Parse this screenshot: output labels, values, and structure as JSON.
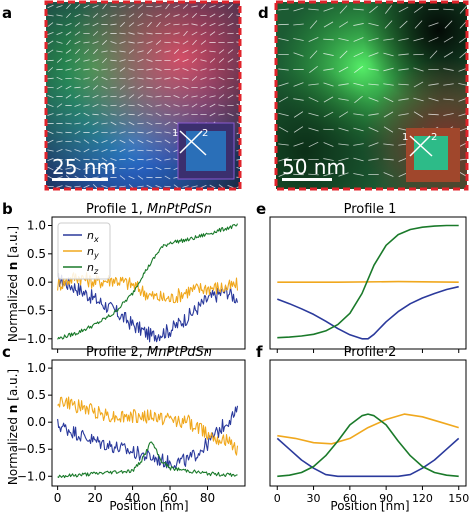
{
  "panels": {
    "a": {
      "label": "a",
      "scale_bar": "25 nm",
      "inset_markers": [
        "1",
        "2"
      ]
    },
    "d": {
      "label": "d",
      "scale_bar": "50 nm",
      "inset_markers": [
        "1",
        "2"
      ]
    }
  },
  "colors": {
    "nx": "#2b3a9c",
    "ny": "#f0a81e",
    "nz": "#1a7a2a",
    "image_border": "#e0232b"
  },
  "chart_data": [
    {
      "panel": "b",
      "type": "line",
      "title": "Profile 1, MnPtPdSn",
      "title_prefix": "Profile 1, ",
      "title_material": "MnPtPdSn",
      "xlabel": "",
      "ylabel_prefix": "Normalized ",
      "ylabel_bold": "n",
      "ylabel_suffix": " [a.u.]",
      "xlim": [
        -3,
        100
      ],
      "ylim": [
        -1.18,
        1.15
      ],
      "xticks": [
        0,
        20,
        40,
        60,
        80
      ],
      "yticks": [
        1.0,
        0.5,
        0.0,
        -0.5,
        -1.0
      ],
      "ytick_labels": [
        "1.0",
        "0.5",
        "0.0",
        "−0.5",
        "−1.0"
      ],
      "legend": {
        "position": "upper-left",
        "entries": [
          {
            "base": "n",
            "sub": "x",
            "series": "nx"
          },
          {
            "base": "n",
            "sub": "y",
            "series": "ny"
          },
          {
            "base": "n",
            "sub": "z",
            "series": "nz"
          }
        ]
      },
      "series": [
        {
          "key": "nx",
          "x": [
            0,
            10,
            20,
            30,
            40,
            50,
            60,
            70,
            80,
            90,
            96
          ],
          "values": [
            0.05,
            -0.1,
            -0.3,
            -0.5,
            -0.75,
            -0.95,
            -0.85,
            -0.6,
            -0.3,
            -0.15,
            -0.3
          ]
        },
        {
          "key": "ny",
          "x": [
            0,
            10,
            20,
            30,
            40,
            50,
            60,
            70,
            80,
            90,
            96
          ],
          "values": [
            -0.05,
            0.1,
            0.0,
            0.05,
            -0.05,
            -0.25,
            -0.3,
            -0.15,
            -0.1,
            -0.1,
            -0.05
          ]
        },
        {
          "key": "nz",
          "x": [
            0,
            10,
            20,
            30,
            40,
            45,
            50,
            55,
            60,
            70,
            80,
            90,
            96
          ],
          "values": [
            -1.0,
            -0.9,
            -0.75,
            -0.55,
            -0.2,
            0.1,
            0.35,
            0.6,
            0.7,
            0.75,
            0.85,
            0.95,
            1.0
          ]
        }
      ]
    },
    {
      "panel": "c",
      "type": "line",
      "title": "Profile 2, MnPtPdSn",
      "title_prefix": "Profile 2, ",
      "title_material": "MnPtPdSn",
      "xlabel": "Position [nm]",
      "ylabel_prefix": "Normalized ",
      "ylabel_bold": "n",
      "ylabel_suffix": " [a.u.]",
      "xlim": [
        -3,
        100
      ],
      "ylim": [
        -1.18,
        1.15
      ],
      "xticks": [
        0,
        20,
        40,
        60,
        80
      ],
      "yticks": [
        1.0,
        0.5,
        0.0,
        -0.5,
        -1.0
      ],
      "ytick_labels": [
        "1.0",
        "0.5",
        "0.0",
        "−0.5",
        "−1.0"
      ],
      "series": [
        {
          "key": "nx",
          "x": [
            0,
            10,
            20,
            30,
            40,
            50,
            60,
            70,
            80,
            85,
            90,
            96
          ],
          "values": [
            -0.05,
            -0.2,
            -0.35,
            -0.45,
            -0.55,
            -0.65,
            -0.75,
            -0.7,
            -0.4,
            -0.2,
            0.0,
            0.2
          ]
        },
        {
          "key": "ny",
          "x": [
            0,
            10,
            20,
            30,
            40,
            50,
            60,
            70,
            80,
            90,
            96
          ],
          "values": [
            0.4,
            0.3,
            0.2,
            0.1,
            0.1,
            0.1,
            0.05,
            0.0,
            -0.2,
            -0.35,
            -0.5
          ]
        },
        {
          "key": "nz",
          "x": [
            0,
            10,
            20,
            30,
            40,
            45,
            50,
            55,
            60,
            70,
            80,
            90,
            96
          ],
          "values": [
            -1.0,
            -0.98,
            -0.95,
            -0.92,
            -0.9,
            -0.7,
            -0.35,
            -0.7,
            -0.85,
            -0.9,
            -0.95,
            -0.97,
            -0.98
          ]
        }
      ]
    },
    {
      "panel": "e",
      "type": "line",
      "title": "Profile 1",
      "xlabel": "",
      "xlim": [
        -6,
        156
      ],
      "ylim": [
        -1.18,
        1.15
      ],
      "xticks": [
        0,
        30,
        60,
        90,
        120,
        150
      ],
      "series": [
        {
          "key": "nx",
          "x": [
            0,
            10,
            20,
            30,
            40,
            50,
            60,
            70,
            75,
            80,
            90,
            100,
            110,
            120,
            130,
            140,
            150
          ],
          "values": [
            -0.3,
            -0.38,
            -0.47,
            -0.57,
            -0.69,
            -0.82,
            -0.93,
            -1.0,
            -1.0,
            -0.92,
            -0.7,
            -0.52,
            -0.38,
            -0.28,
            -0.2,
            -0.13,
            -0.08
          ]
        },
        {
          "key": "ny",
          "x": [
            0,
            50,
            100,
            150
          ],
          "values": [
            0.0,
            0.0,
            0.01,
            0.0
          ]
        },
        {
          "key": "nz",
          "x": [
            0,
            10,
            20,
            30,
            40,
            50,
            60,
            70,
            80,
            90,
            100,
            110,
            120,
            130,
            140,
            150
          ],
          "values": [
            -0.98,
            -0.97,
            -0.95,
            -0.92,
            -0.86,
            -0.75,
            -0.55,
            -0.2,
            0.3,
            0.65,
            0.84,
            0.93,
            0.97,
            0.99,
            1.0,
            1.0
          ]
        }
      ]
    },
    {
      "panel": "f",
      "type": "line",
      "title": "Profile 2",
      "xlabel": "Position [nm]",
      "xlim": [
        -6,
        156
      ],
      "ylim": [
        -1.18,
        1.15
      ],
      "xticks": [
        0,
        30,
        60,
        90,
        120,
        150
      ],
      "series": [
        {
          "key": "nx",
          "x": [
            0,
            10,
            20,
            30,
            40,
            50,
            60,
            70,
            80,
            90,
            100,
            110,
            120,
            130,
            140,
            150
          ],
          "values": [
            -0.3,
            -0.5,
            -0.7,
            -0.85,
            -0.97,
            -1.0,
            -1.0,
            -1.0,
            -1.0,
            -1.0,
            -1.0,
            -0.97,
            -0.85,
            -0.7,
            -0.5,
            -0.3
          ]
        },
        {
          "key": "ny",
          "x": [
            0,
            15,
            30,
            45,
            60,
            75,
            90,
            105,
            120,
            135,
            150
          ],
          "values": [
            -0.25,
            -0.3,
            -0.38,
            -0.4,
            -0.3,
            -0.1,
            0.05,
            0.15,
            0.1,
            0.0,
            -0.1
          ]
        },
        {
          "key": "nz",
          "x": [
            0,
            10,
            20,
            30,
            40,
            50,
            60,
            70,
            75,
            80,
            90,
            100,
            110,
            120,
            130,
            140,
            150
          ],
          "values": [
            -1.0,
            -0.98,
            -0.93,
            -0.82,
            -0.62,
            -0.35,
            -0.05,
            0.12,
            0.15,
            0.12,
            -0.05,
            -0.35,
            -0.62,
            -0.82,
            -0.93,
            -0.98,
            -1.0
          ]
        }
      ]
    }
  ]
}
